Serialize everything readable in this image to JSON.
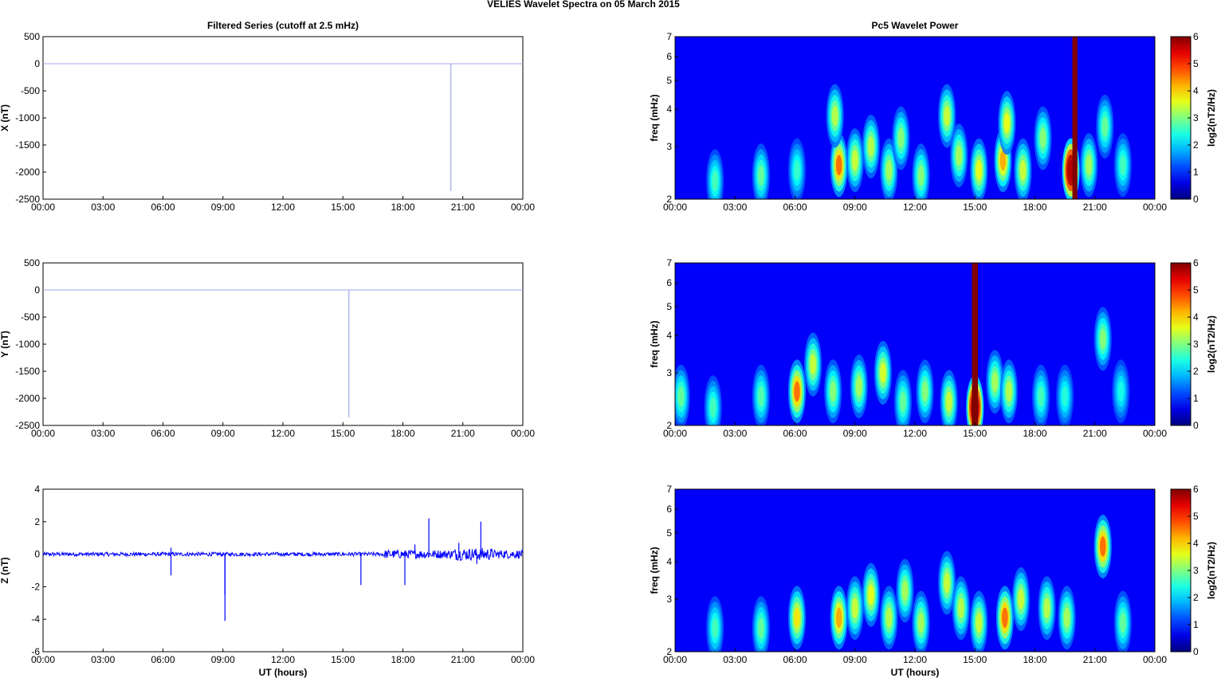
{
  "figure": {
    "title": "VELIES Wavelet Spectra on 05 March     2015",
    "left_title": "Filtered Series (cutoff at 2.5 mHz)",
    "right_title": "Pc5 Wavelet Power",
    "x_label": "UT (hours)"
  },
  "chart_data": [
    {
      "type": "line",
      "ylabel": "X (nT)",
      "x_ticks": [
        "00:00",
        "03:00",
        "06:00",
        "09:00",
        "12:00",
        "15:00",
        "18:00",
        "21:00",
        "00:00"
      ],
      "xlim": [
        0,
        24
      ],
      "ylim": [
        -2500,
        500
      ],
      "y_ticks": [
        500,
        0,
        -500,
        -1000,
        -1500,
        -2000,
        -2500
      ],
      "series_color": "#a0a8e8",
      "baseline": 0,
      "noise_amplitude": 0,
      "spikes": [
        {
          "x": 20.4,
          "y": -2350
        }
      ]
    },
    {
      "type": "line",
      "ylabel": "Y (nT)",
      "x_ticks": [
        "00:00",
        "03:00",
        "06:00",
        "09:00",
        "12:00",
        "15:00",
        "18:00",
        "21:00",
        "00:00"
      ],
      "xlim": [
        0,
        24
      ],
      "ylim": [
        -2500,
        500
      ],
      "y_ticks": [
        500,
        0,
        -500,
        -1000,
        -1500,
        -2000,
        -2500
      ],
      "series_color": "#a0a8e8",
      "baseline": 0,
      "noise_amplitude": 0,
      "spikes": [
        {
          "x": 15.3,
          "y": -2350
        }
      ]
    },
    {
      "type": "line",
      "ylabel": "Z (nT)",
      "x_ticks": [
        "00:00",
        "03:00",
        "06:00",
        "09:00",
        "12:00",
        "15:00",
        "18:00",
        "21:00",
        "00:00"
      ],
      "xlim": [
        0,
        24
      ],
      "ylim": [
        -6,
        4
      ],
      "y_ticks": [
        4,
        2,
        0,
        -2,
        -4,
        -6
      ],
      "series_color": "#0000ff",
      "baseline": 0,
      "noise_amplitude": 0.12,
      "spikes": [
        {
          "x": 6.4,
          "y": -1.3
        },
        {
          "x": 6.4,
          "y": 0.4
        },
        {
          "x": 9.1,
          "y": -4.1
        },
        {
          "x": 9.1,
          "y": -2.5
        },
        {
          "x": 15.9,
          "y": -1.9
        },
        {
          "x": 18.1,
          "y": -1.9
        },
        {
          "x": 19.3,
          "y": 2.2
        },
        {
          "x": 21.9,
          "y": 2.0
        },
        {
          "x": 18.6,
          "y": 0.6
        },
        {
          "x": 20.8,
          "y": 0.7
        },
        {
          "x": 21.7,
          "y": -0.6
        }
      ]
    },
    {
      "type": "heatmap",
      "ylabel": "freq (mHz)",
      "x_ticks": [
        "00:00",
        "03:00",
        "06:00",
        "09:00",
        "12:00",
        "15:00",
        "18:00",
        "21:00",
        "00:00"
      ],
      "xlim": [
        0,
        24
      ],
      "y_scale": "log",
      "ylim": [
        2,
        7
      ],
      "y_ticks": [
        2,
        3,
        4,
        5,
        6,
        7
      ],
      "colorbar": {
        "min": 0,
        "max": 6,
        "ticks": [
          0,
          1,
          2,
          3,
          4,
          5,
          6
        ],
        "label": "log2(nT2/Hz)"
      },
      "blobs": [
        {
          "t": 2.0,
          "f": 2.3,
          "p": 1.8
        },
        {
          "t": 4.3,
          "f": 2.4,
          "p": 2.0
        },
        {
          "t": 6.1,
          "f": 2.5,
          "p": 1.7
        },
        {
          "t": 8.2,
          "f": 2.6,
          "p": 3.8
        },
        {
          "t": 8.0,
          "f": 3.8,
          "p": 2.5
        },
        {
          "t": 9.0,
          "f": 2.7,
          "p": 2.6
        },
        {
          "t": 9.8,
          "f": 3.0,
          "p": 2.5
        },
        {
          "t": 10.7,
          "f": 2.5,
          "p": 2.4
        },
        {
          "t": 11.3,
          "f": 3.2,
          "p": 2.2
        },
        {
          "t": 12.3,
          "f": 2.4,
          "p": 2.2
        },
        {
          "t": 13.6,
          "f": 3.8,
          "p": 2.6
        },
        {
          "t": 14.2,
          "f": 2.8,
          "p": 2.4
        },
        {
          "t": 15.2,
          "f": 2.5,
          "p": 2.8
        },
        {
          "t": 16.4,
          "f": 2.7,
          "p": 3.4
        },
        {
          "t": 16.6,
          "f": 3.6,
          "p": 2.8
        },
        {
          "t": 17.4,
          "f": 2.5,
          "p": 2.6
        },
        {
          "t": 18.4,
          "f": 3.2,
          "p": 2.2
        },
        {
          "t": 19.8,
          "f": 2.5,
          "p": 6.5
        },
        {
          "t": 20.7,
          "f": 2.6,
          "p": 2.4
        },
        {
          "t": 21.5,
          "f": 3.5,
          "p": 2.0
        },
        {
          "t": 22.4,
          "f": 2.6,
          "p": 1.8
        }
      ],
      "saturated_columns": [
        {
          "t": 20.0,
          "width_hours": 0.25
        }
      ]
    },
    {
      "type": "heatmap",
      "ylabel": "freq (mHz)",
      "x_ticks": [
        "00:00",
        "03:00",
        "06:00",
        "09:00",
        "12:00",
        "15:00",
        "18:00",
        "21:00",
        "00:00"
      ],
      "xlim": [
        0,
        24
      ],
      "y_scale": "log",
      "ylim": [
        2,
        7
      ],
      "y_ticks": [
        2,
        3,
        4,
        5,
        6,
        7
      ],
      "colorbar": {
        "min": 0,
        "max": 6,
        "ticks": [
          0,
          1,
          2,
          3,
          4,
          5,
          6
        ],
        "label": "log2(nT2/Hz)"
      },
      "blobs": [
        {
          "t": 0.3,
          "f": 2.5,
          "p": 2.0
        },
        {
          "t": 1.9,
          "f": 2.3,
          "p": 1.8
        },
        {
          "t": 4.3,
          "f": 2.5,
          "p": 1.9
        },
        {
          "t": 6.1,
          "f": 2.6,
          "p": 3.8
        },
        {
          "t": 6.9,
          "f": 3.2,
          "p": 2.6
        },
        {
          "t": 7.9,
          "f": 2.6,
          "p": 2.2
        },
        {
          "t": 9.2,
          "f": 2.7,
          "p": 2.4
        },
        {
          "t": 10.4,
          "f": 3.0,
          "p": 2.7
        },
        {
          "t": 11.4,
          "f": 2.4,
          "p": 2.0
        },
        {
          "t": 12.5,
          "f": 2.6,
          "p": 2.2
        },
        {
          "t": 13.7,
          "f": 2.4,
          "p": 2.6
        },
        {
          "t": 15.0,
          "f": 2.3,
          "p": 6.5
        },
        {
          "t": 16.0,
          "f": 2.8,
          "p": 2.4
        },
        {
          "t": 16.7,
          "f": 2.6,
          "p": 2.5
        },
        {
          "t": 18.3,
          "f": 2.5,
          "p": 1.8
        },
        {
          "t": 19.5,
          "f": 2.5,
          "p": 1.6
        },
        {
          "t": 21.4,
          "f": 3.9,
          "p": 2.2
        },
        {
          "t": 22.3,
          "f": 2.6,
          "p": 1.5
        }
      ],
      "saturated_columns": [
        {
          "t": 15.0,
          "width_hours": 0.3
        }
      ]
    },
    {
      "type": "heatmap",
      "ylabel": "freq (mHz)",
      "x_ticks": [
        "00:00",
        "03:00",
        "06:00",
        "09:00",
        "12:00",
        "15:00",
        "18:00",
        "21:00",
        "00:00"
      ],
      "xlim": [
        0,
        24
      ],
      "y_scale": "log",
      "ylim": [
        2,
        7
      ],
      "y_ticks": [
        2,
        3,
        4,
        5,
        6,
        7
      ],
      "colorbar": {
        "min": 0,
        "max": 6,
        "ticks": [
          0,
          1,
          2,
          3,
          4,
          5,
          6
        ],
        "label": "log2(nT2/Hz)"
      },
      "blobs": [
        {
          "t": 2.0,
          "f": 2.4,
          "p": 1.8
        },
        {
          "t": 4.3,
          "f": 2.4,
          "p": 2.0
        },
        {
          "t": 6.1,
          "f": 2.6,
          "p": 3.0
        },
        {
          "t": 8.2,
          "f": 2.6,
          "p": 3.4
        },
        {
          "t": 9.0,
          "f": 2.8,
          "p": 2.6
        },
        {
          "t": 9.8,
          "f": 3.1,
          "p": 2.8
        },
        {
          "t": 10.7,
          "f": 2.6,
          "p": 2.5
        },
        {
          "t": 11.5,
          "f": 3.2,
          "p": 2.4
        },
        {
          "t": 12.3,
          "f": 2.5,
          "p": 2.4
        },
        {
          "t": 13.6,
          "f": 3.4,
          "p": 2.6
        },
        {
          "t": 14.3,
          "f": 2.8,
          "p": 2.5
        },
        {
          "t": 15.2,
          "f": 2.5,
          "p": 2.6
        },
        {
          "t": 16.5,
          "f": 2.6,
          "p": 3.8
        },
        {
          "t": 17.3,
          "f": 3.0,
          "p": 2.6
        },
        {
          "t": 18.6,
          "f": 2.8,
          "p": 2.5
        },
        {
          "t": 19.6,
          "f": 2.6,
          "p": 2.4
        },
        {
          "t": 21.4,
          "f": 4.5,
          "p": 3.8
        },
        {
          "t": 22.4,
          "f": 2.5,
          "p": 2.0
        }
      ],
      "saturated_columns": []
    }
  ]
}
